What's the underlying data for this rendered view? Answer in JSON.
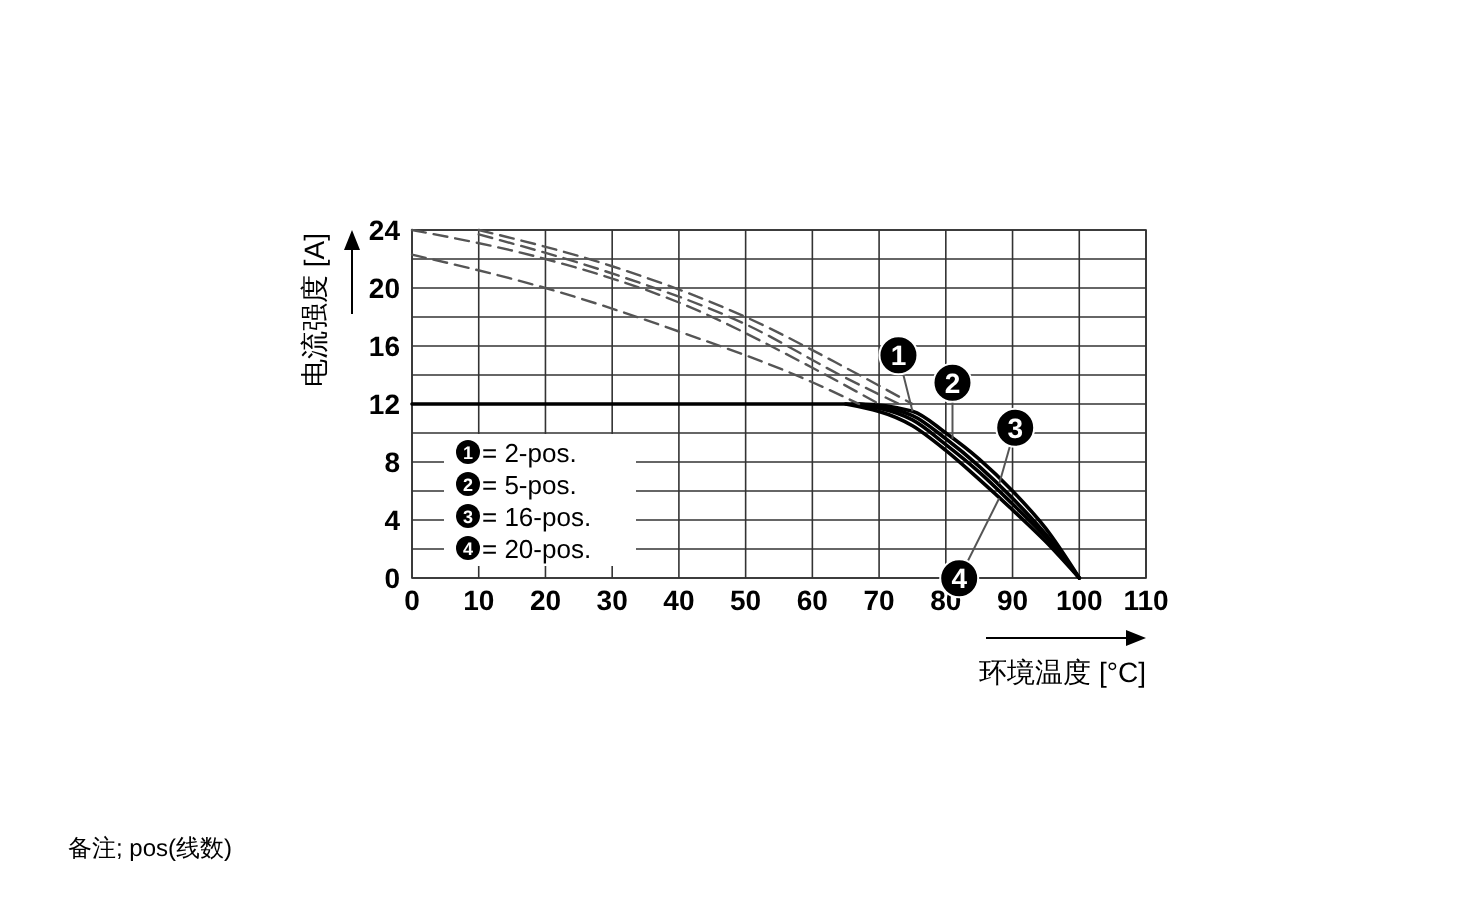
{
  "chart_data": {
    "type": "line",
    "xlabel": "环境温度 [°C]",
    "ylabel": "电流强度 [A]",
    "xlim": [
      0,
      110
    ],
    "ylim": [
      0,
      24
    ],
    "xticks": [
      0,
      10,
      20,
      30,
      40,
      50,
      60,
      70,
      80,
      90,
      100,
      110
    ],
    "yticks": [
      0,
      {
        "value": 2,
        "label": null
      },
      4,
      {
        "value": 6,
        "label": null
      },
      8,
      {
        "value": 10,
        "label": null
      },
      12,
      {
        "value": 14,
        "label": null
      },
      16,
      {
        "value": 18,
        "label": null
      },
      20,
      {
        "value": 22,
        "label": null
      },
      24
    ],
    "grid": true,
    "legend": "bottom left",
    "line_style": "solid",
    "marker": "none",
    "series": [
      {
        "name": "= 2-pos.",
        "color": "#000000",
        "x": [
          0,
          67,
          75,
          80,
          85,
          90,
          95,
          100
        ],
        "values": [
          12,
          12,
          11.5,
          10,
          8.2,
          6,
          3.4,
          0
        ]
      },
      {
        "name": "= 5-pos.",
        "color": "#000000",
        "x": [
          67,
          75,
          80,
          85,
          90,
          95,
          100
        ],
        "values": [
          12,
          11.2,
          9.6,
          7.7,
          5.5,
          3,
          0
        ]
      },
      {
        "name": "= 16-pos.",
        "color": "#000000",
        "x": [
          66,
          75,
          80,
          85,
          90,
          95,
          100
        ],
        "values": [
          12,
          10.9,
          9.2,
          7.3,
          5.1,
          2.8,
          0
        ]
      },
      {
        "name": "= 20-pos.",
        "color": "#000000",
        "x": [
          65,
          75,
          80,
          85,
          90,
          95,
          100
        ],
        "values": [
          12,
          10.5,
          8.8,
          6.8,
          4.7,
          2.5,
          0
        ]
      },
      {
        "color": "#555555",
        "line_style": "dashed",
        "x": [
          10,
          30,
          50,
          65,
          75
        ],
        "values": [
          24,
          21.5,
          18,
          14.5,
          12
        ]
      },
      {
        "color": "#555555",
        "line_style": "dashed",
        "x": [
          10,
          30,
          50,
          65,
          73
        ],
        "values": [
          23.7,
          21,
          17.5,
          13.8,
          12
        ]
      },
      {
        "color": "#555555",
        "line_style": "dashed",
        "x": [
          0,
          20,
          40,
          60,
          70
        ],
        "values": [
          24,
          22,
          19,
          14.5,
          12
        ]
      },
      {
        "color": "#555555",
        "line_style": "dashed",
        "x": [
          0,
          20,
          40,
          60,
          67
        ],
        "values": [
          22.3,
          20,
          17,
          13.5,
          12
        ]
      }
    ],
    "annotations": [
      {
        "text": "1",
        "x": 75,
        "y": 11.5
      },
      {
        "text": "2",
        "x": 81,
        "y": 9.6
      },
      {
        "text": "3",
        "x": 88,
        "y": 6.5
      },
      {
        "text": "4",
        "x": 88,
        "y": 5.5
      },
      "备注; pos(线数)"
    ]
  }
}
